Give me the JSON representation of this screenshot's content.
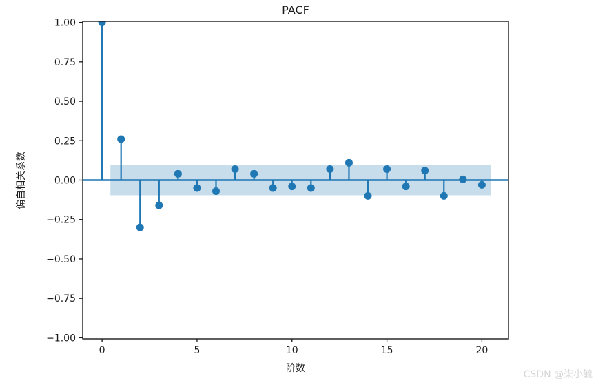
{
  "figure": {
    "watermark": "CSDN @柒小毓"
  },
  "chart_data": {
    "type": "stem",
    "title": "PACF",
    "xlabel": "阶数",
    "ylabel": "偏自相关系数",
    "x": [
      0,
      1,
      2,
      3,
      4,
      5,
      6,
      7,
      8,
      9,
      10,
      11,
      12,
      13,
      14,
      15,
      16,
      17,
      18,
      19,
      20
    ],
    "values": [
      1.0,
      0.26,
      -0.3,
      -0.16,
      0.04,
      -0.05,
      -0.07,
      0.07,
      0.04,
      -0.05,
      -0.04,
      -0.05,
      0.07,
      0.11,
      -0.1,
      0.07,
      -0.04,
      0.06,
      -0.1,
      0.005,
      -0.03
    ],
    "confidence_band": {
      "lower": -0.096,
      "upper": 0.096,
      "x_start": 0.44,
      "x_end": 20.46
    },
    "xlim": [
      -1.02,
      21.4
    ],
    "ylim": [
      -1.007,
      1.007
    ],
    "x_ticks": [
      0,
      5,
      10,
      15,
      20
    ],
    "x_tick_labels": [
      "0",
      "5",
      "10",
      "15",
      "20"
    ],
    "y_ticks": [
      1.0,
      0.75,
      0.5,
      0.25,
      0.0,
      -0.25,
      -0.5,
      -0.75,
      -1.0
    ],
    "y_tick_labels": [
      "1.00",
      "0.75",
      "0.50",
      "0.25",
      "0.00",
      "−0.25",
      "−0.50",
      "−0.75",
      "−1.00"
    ],
    "grid": false,
    "legend": null,
    "colors": {
      "stem": "#1f77b4",
      "band": "#1f77b4",
      "band_alpha": 0.25,
      "axis": "#1a1a1a",
      "background": "#ffffff",
      "watermark": "#d5d5d5"
    }
  }
}
